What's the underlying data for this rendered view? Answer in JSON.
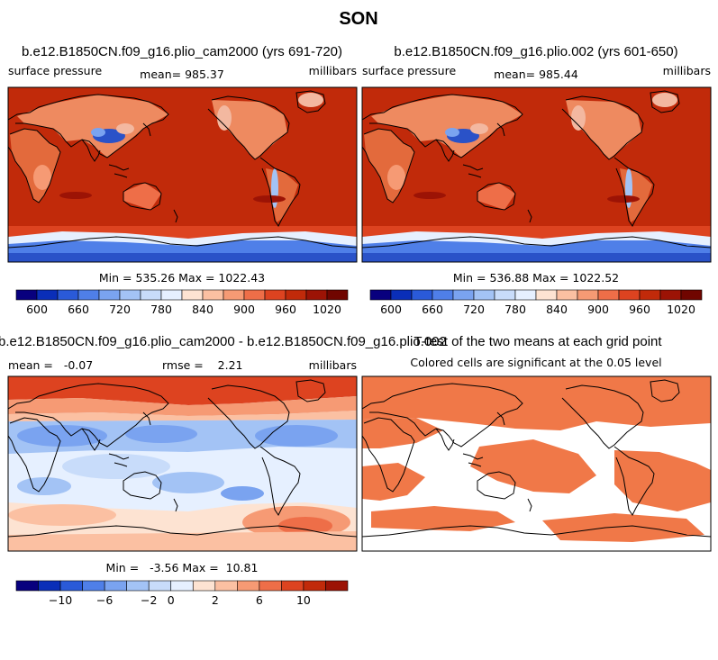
{
  "figure": {
    "title": "SON"
  },
  "colors": {
    "ocean_warm": "#c12a0a",
    "land_light": "#f3b8a0",
    "land_mid": "#e36a3c",
    "plateau_blue": "#2a52c8",
    "ice_blue": "#7fa8ef",
    "sig_fill": "#f07848",
    "coast": "#000000",
    "frame": "#000000"
  },
  "panels": [
    {
      "title": "b.e12.B1850CN.f09_g16.plio_cam2000 (yrs 691-720)",
      "left_label": "surface pressure",
      "center_label": "mean= 985.37",
      "right_label": "millibars",
      "stats_label": "Min = 535.26 Max = 1022.43"
    },
    {
      "title": "b.e12.B1850CN.f09_g16.plio.002 (yrs 601-650)",
      "left_label": "surface pressure",
      "center_label": "mean= 985.44",
      "right_label": "millibars",
      "stats_label": "Min = 536.88 Max = 1022.52"
    },
    {
      "title": "b.e12.B1850CN.f09_g16.plio_cam2000 - b.e12.B1850CN.f09_g16.plio.002",
      "left_label": "mean =   -0.07",
      "center_label": "rmse =    2.21",
      "right_label": "millibars",
      "stats_label": "Min =   -3.56 Max =  10.81"
    },
    {
      "title": "T-test of the two means at each grid point",
      "subtitle": "Colored cells are significant at the 0.05 level"
    }
  ],
  "chart_data": [
    {
      "type": "heatmap",
      "title": "b.e12.B1850CN.f09_g16.plio_cam2000 (yrs 691-720)",
      "variable": "surface pressure",
      "units": "millibars",
      "mean": 985.37,
      "min": 535.26,
      "max": 1022.43,
      "colorbar": {
        "levels": [
          600,
          630,
          660,
          690,
          720,
          750,
          780,
          810,
          840,
          870,
          900,
          930,
          960,
          990,
          1020
        ],
        "tick_labels": [
          "600",
          "660",
          "720",
          "780",
          "840",
          "900",
          "960",
          "1020"
        ],
        "colors": [
          "#08007e",
          "#0a2eb8",
          "#2a5ad8",
          "#4f7fe8",
          "#7aa3f0",
          "#a3c3f5",
          "#c8dcfa",
          "#e6f0ff",
          "#fde3d2",
          "#fbc0a2",
          "#f69a74",
          "#ee6e48",
          "#dd4320",
          "#c12a0a",
          "#9c1305",
          "#700500"
        ]
      }
    },
    {
      "type": "heatmap",
      "title": "b.e12.B1850CN.f09_g16.plio.002 (yrs 601-650)",
      "variable": "surface pressure",
      "units": "millibars",
      "mean": 985.44,
      "min": 536.88,
      "max": 1022.52,
      "colorbar": {
        "levels": [
          600,
          630,
          660,
          690,
          720,
          750,
          780,
          810,
          840,
          870,
          900,
          930,
          960,
          990,
          1020
        ],
        "tick_labels": [
          "600",
          "660",
          "720",
          "780",
          "840",
          "900",
          "960",
          "1020"
        ],
        "colors": [
          "#08007e",
          "#0a2eb8",
          "#2a5ad8",
          "#4f7fe8",
          "#7aa3f0",
          "#a3c3f5",
          "#c8dcfa",
          "#e6f0ff",
          "#fde3d2",
          "#fbc0a2",
          "#f69a74",
          "#ee6e48",
          "#dd4320",
          "#c12a0a",
          "#9c1305",
          "#700500"
        ]
      }
    },
    {
      "type": "heatmap",
      "title": "b.e12.B1850CN.f09_g16.plio_cam2000 - b.e12.B1850CN.f09_g16.plio.002",
      "units": "millibars",
      "mean": -0.07,
      "rmse": 2.21,
      "min": -3.56,
      "max": 10.81,
      "colorbar": {
        "levels": [
          -12,
          -10,
          -8,
          -6,
          -4,
          -2,
          0,
          1,
          2,
          4,
          6,
          8,
          10,
          12
        ],
        "tick_labels": [
          "-10",
          "-6",
          "-2",
          "0",
          "2",
          "6",
          "10"
        ],
        "colors": [
          "#08007e",
          "#0a2eb8",
          "#2a5ad8",
          "#4f7fe8",
          "#7aa3f0",
          "#a3c3f5",
          "#c8dcfa",
          "#e6f0ff",
          "#fde3d2",
          "#fbc0a2",
          "#f69a74",
          "#ee6e48",
          "#dd4320",
          "#c12a0a",
          "#9c1305"
        ]
      }
    },
    {
      "type": "heatmap",
      "title": "T-test of the two means at each grid point",
      "subtitle": "Colored cells are significant at the 0.05 level",
      "significance_level": 0.05
    }
  ]
}
